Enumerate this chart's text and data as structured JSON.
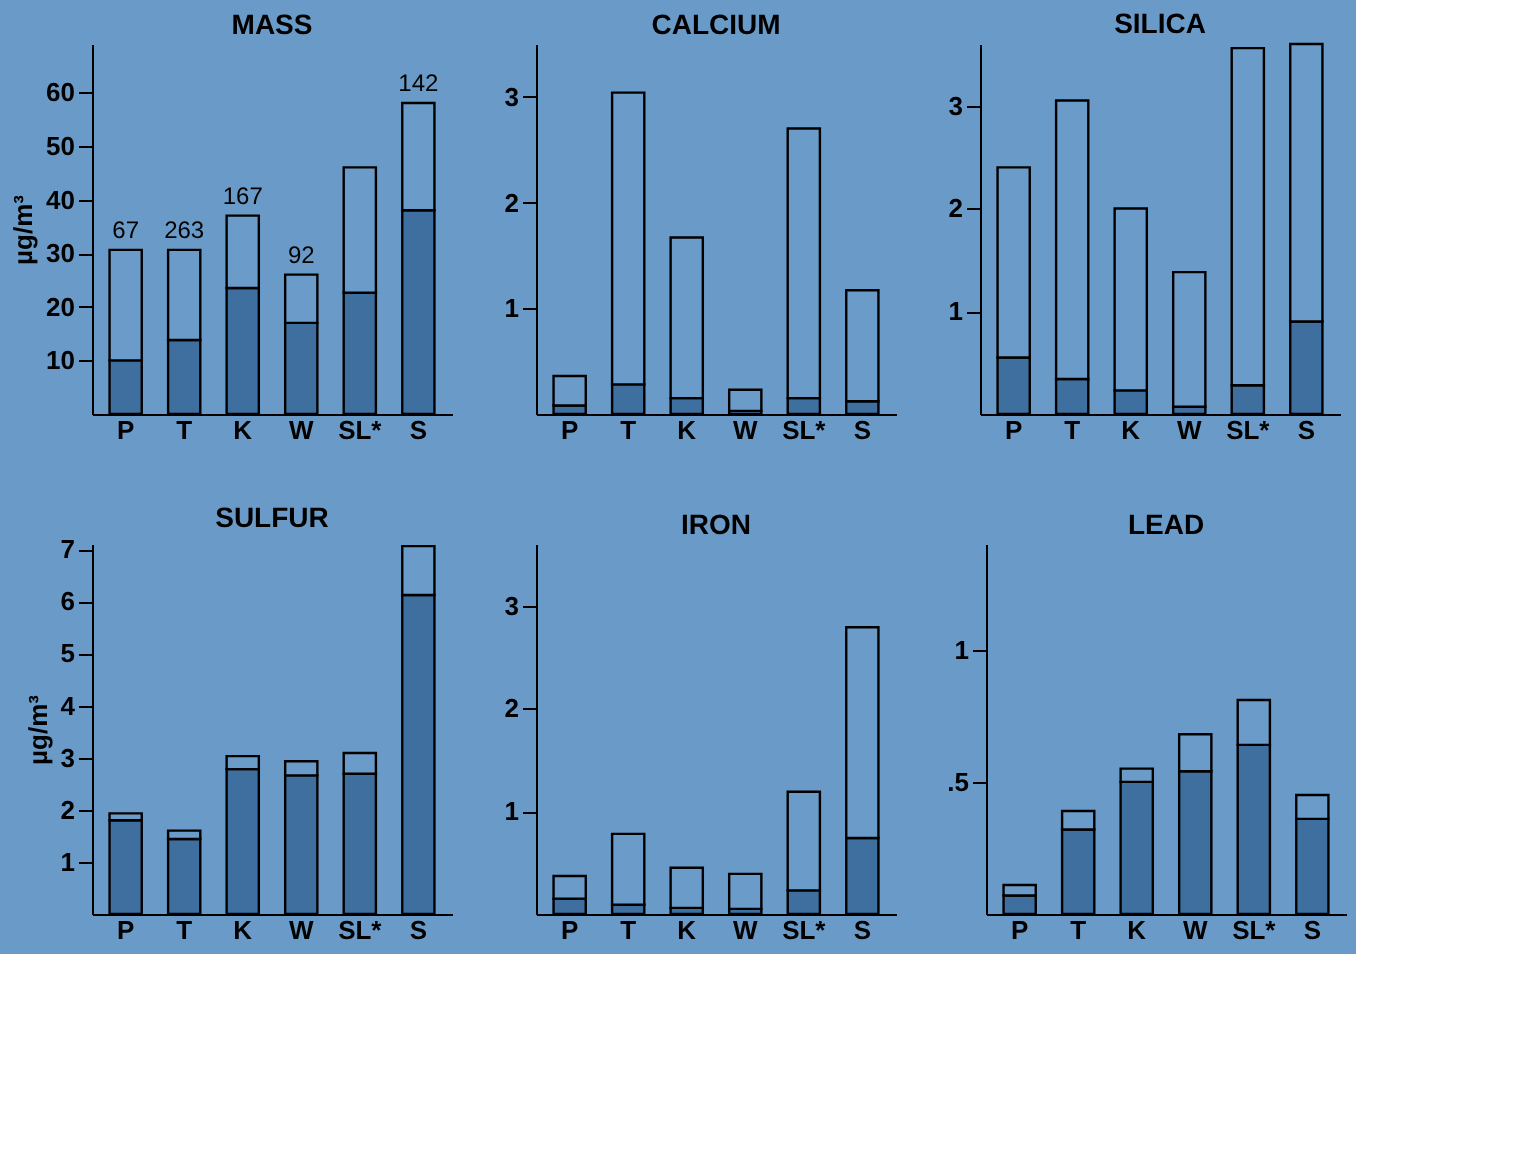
{
  "chart_data": [
    {
      "type": "bar",
      "stacked": true,
      "title": "MASS",
      "ylabel": "µg/m³",
      "categories": [
        "P",
        "T",
        "K",
        "W",
        "SL*",
        "S"
      ],
      "ylim": [
        0,
        69
      ],
      "yticks": [
        10,
        20,
        30,
        40,
        50,
        60
      ],
      "series": [
        {
          "color": "#3f6f9e",
          "values": [
            10,
            13.8,
            23.5,
            17,
            22.6,
            38
          ]
        },
        {
          "color": "#6b9cc9",
          "values": [
            20.6,
            16.8,
            13.5,
            9,
            23.4,
            20
          ]
        }
      ],
      "annotations": [
        {
          "text": "67",
          "x": "P",
          "y": 30.6
        },
        {
          "text": "263",
          "x": "T",
          "y": 30.6
        },
        {
          "text": "167",
          "x": "K",
          "y": 37
        },
        {
          "text": "92",
          "x": "W",
          "y": 26
        },
        {
          "text": "142",
          "x": "S",
          "y": 58
        }
      ]
    },
    {
      "type": "bar",
      "stacked": true,
      "title": "CALCIUM",
      "categories": [
        "P",
        "T",
        "K",
        "W",
        "SL*",
        "S"
      ],
      "ylim": [
        0,
        3.5
      ],
      "yticks": [
        1,
        2,
        3
      ],
      "series": [
        {
          "color": "#3f6f9e",
          "values": [
            0.08,
            0.28,
            0.15,
            0.03,
            0.15,
            0.12
          ]
        },
        {
          "color": "#6b9cc9",
          "values": [
            0.28,
            2.76,
            1.52,
            0.2,
            2.55,
            1.05
          ]
        }
      ]
    },
    {
      "type": "bar",
      "stacked": true,
      "title": "SILICA",
      "categories": [
        "P",
        "T",
        "K",
        "W",
        "SL*",
        "S"
      ],
      "ylim": [
        0,
        3.6
      ],
      "yticks": [
        1,
        2,
        3
      ],
      "series": [
        {
          "color": "#3f6f9e",
          "values": [
            0.55,
            0.34,
            0.23,
            0.07,
            0.28,
            0.9
          ]
        },
        {
          "color": "#6b9cc9",
          "values": [
            1.85,
            2.71,
            1.77,
            1.31,
            3.28,
            2.7
          ]
        }
      ]
    },
    {
      "type": "bar",
      "stacked": true,
      "title": "SULFUR",
      "ylabel": "µg/m³",
      "categories": [
        "P",
        "T",
        "K",
        "W",
        "SL*",
        "S"
      ],
      "ylim": [
        0,
        7.1
      ],
      "yticks": [
        1,
        2,
        3,
        4,
        5,
        6,
        7
      ],
      "series": [
        {
          "color": "#3f6f9e",
          "values": [
            1.8,
            1.44,
            2.78,
            2.66,
            2.69,
            6.12
          ]
        },
        {
          "color": "#6b9cc9",
          "values": [
            0.13,
            0.16,
            0.25,
            0.27,
            0.4,
            0.94
          ]
        }
      ]
    },
    {
      "type": "bar",
      "stacked": true,
      "title": "IRON",
      "categories": [
        "P",
        "T",
        "K",
        "W",
        "SL*",
        "S"
      ],
      "ylim": [
        0,
        3.6
      ],
      "yticks": [
        1,
        2,
        3
      ],
      "series": [
        {
          "color": "#3f6f9e",
          "values": [
            0.15,
            0.09,
            0.06,
            0.05,
            0.23,
            0.74
          ]
        },
        {
          "color": "#6b9cc9",
          "values": [
            0.22,
            0.69,
            0.39,
            0.34,
            0.96,
            2.05
          ]
        }
      ]
    },
    {
      "type": "bar",
      "stacked": true,
      "title": "LEAD",
      "categories": [
        "P",
        "T",
        "K",
        "W",
        "SL*",
        "S"
      ],
      "ylim": [
        0,
        1.4
      ],
      "yticks": [
        {
          "value": 0.5,
          "label": ".5"
        },
        1
      ],
      "series": [
        {
          "color": "#3f6f9e",
          "values": [
            0.07,
            0.32,
            0.5,
            0.54,
            0.64,
            0.36
          ]
        },
        {
          "color": "#6b9cc9",
          "values": [
            0.04,
            0.07,
            0.05,
            0.14,
            0.17,
            0.09
          ]
        }
      ]
    }
  ]
}
